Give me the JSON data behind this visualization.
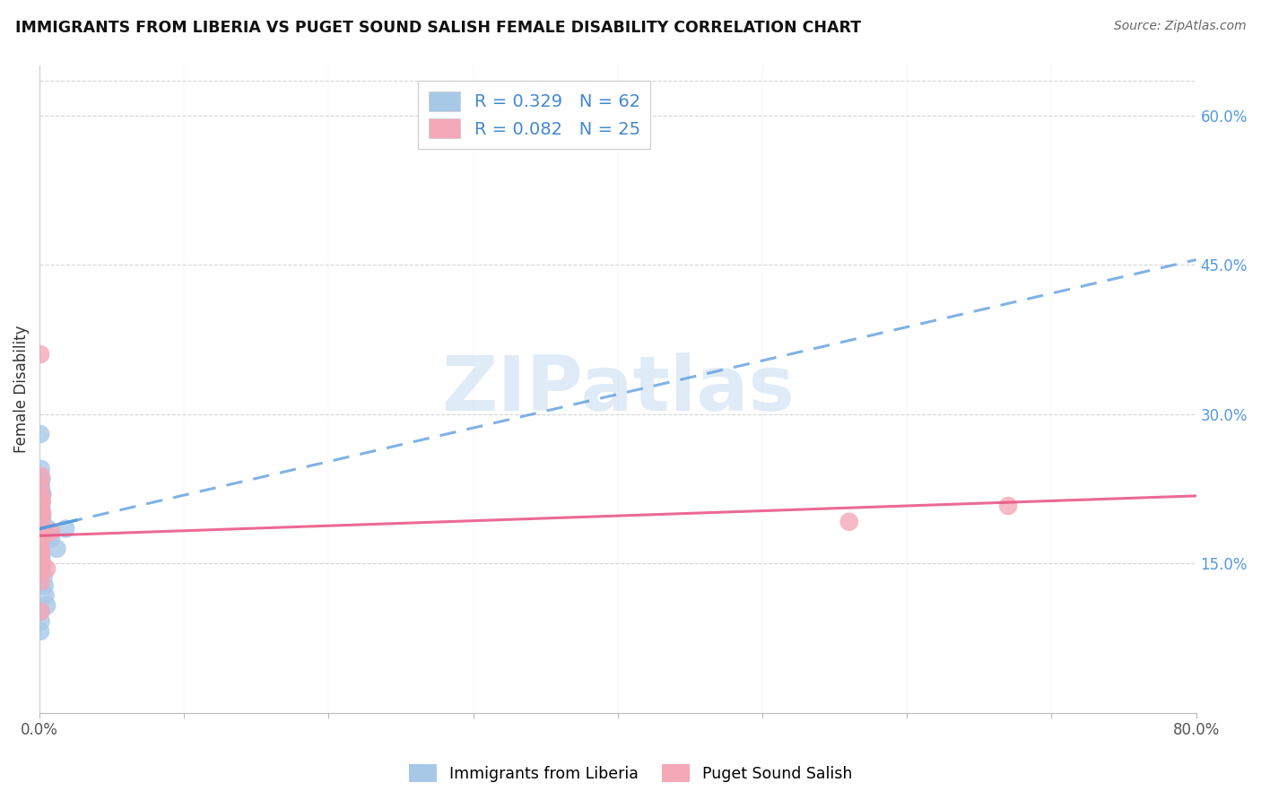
{
  "title": "IMMIGRANTS FROM LIBERIA VS PUGET SOUND SALISH FEMALE DISABILITY CORRELATION CHART",
  "source": "Source: ZipAtlas.com",
  "ylabel": "Female Disability",
  "legend_label1": "Immigrants from Liberia",
  "legend_label2": "Puget Sound Salish",
  "R1": 0.329,
  "N1": 62,
  "R2": 0.082,
  "N2": 25,
  "color1": "#a8c8e8",
  "color2": "#f4a8b8",
  "trendline1_color": "#5599dd",
  "trendline2_color": "#e85080",
  "xlim": [
    0.0,
    0.8
  ],
  "ylim": [
    0.0,
    0.65
  ],
  "y_ticks_right": [
    0.15,
    0.3,
    0.45,
    0.6
  ],
  "y_tick_labels_right": [
    "15.0%",
    "30.0%",
    "45.0%",
    "60.0%"
  ],
  "blue_trend_x0": 0.0,
  "blue_trend_y0": 0.185,
  "blue_trend_x1": 0.8,
  "blue_trend_y1": 0.455,
  "pink_trend_x0": 0.0,
  "pink_trend_y0": 0.178,
  "pink_trend_x1": 0.8,
  "pink_trend_y1": 0.218,
  "blue_x": [
    0.0005,
    0.001,
    0.0008,
    0.0012,
    0.0006,
    0.001,
    0.0015,
    0.0008,
    0.0018,
    0.001,
    0.0005,
    0.0009,
    0.0007,
    0.0011,
    0.0006,
    0.0014,
    0.001,
    0.0008,
    0.0013,
    0.0007,
    0.0016,
    0.0009,
    0.001,
    0.0007,
    0.0012,
    0.002,
    0.0025,
    0.0008,
    0.0015,
    0.002,
    0.003,
    0.0035,
    0.004,
    0.005,
    0.0015,
    0.002,
    0.0008,
    0.0012,
    0.0007,
    0.001,
    0.006,
    0.008,
    0.012,
    0.018,
    0.0006,
    0.001,
    0.0015,
    0.0009,
    0.001,
    0.0007,
    0.001,
    0.0008,
    0.0014,
    0.0006,
    0.001,
    0.0007,
    0.0009,
    0.0006,
    0.0008,
    0.0005,
    0.0007,
    0.0006
  ],
  "blue_y": [
    0.205,
    0.2,
    0.195,
    0.21,
    0.185,
    0.2,
    0.22,
    0.175,
    0.195,
    0.2,
    0.185,
    0.178,
    0.19,
    0.2,
    0.182,
    0.192,
    0.2,
    0.172,
    0.183,
    0.168,
    0.19,
    0.175,
    0.165,
    0.18,
    0.195,
    0.183,
    0.175,
    0.163,
    0.158,
    0.148,
    0.138,
    0.128,
    0.118,
    0.108,
    0.205,
    0.22,
    0.232,
    0.218,
    0.2,
    0.195,
    0.185,
    0.175,
    0.165,
    0.185,
    0.28,
    0.245,
    0.235,
    0.225,
    0.215,
    0.202,
    0.172,
    0.162,
    0.152,
    0.142,
    0.132,
    0.102,
    0.092,
    0.082,
    0.192,
    0.172,
    0.162,
    0.152
  ],
  "pink_x": [
    0.0006,
    0.001,
    0.0008,
    0.0015,
    0.0007,
    0.001,
    0.0012,
    0.0016,
    0.002,
    0.0025,
    0.0007,
    0.001,
    0.0015,
    0.0008,
    0.001,
    0.0007,
    0.005,
    0.008,
    0.0008,
    0.001,
    0.0007,
    0.001,
    0.0008,
    0.56,
    0.67
  ],
  "pink_y": [
    0.36,
    0.238,
    0.228,
    0.218,
    0.21,
    0.2,
    0.195,
    0.212,
    0.2,
    0.182,
    0.175,
    0.162,
    0.152,
    0.142,
    0.162,
    0.152,
    0.145,
    0.182,
    0.172,
    0.162,
    0.142,
    0.132,
    0.102,
    0.192,
    0.208
  ],
  "watermark": "ZIPatlas",
  "background_color": "#ffffff",
  "grid_color": "#cccccc"
}
